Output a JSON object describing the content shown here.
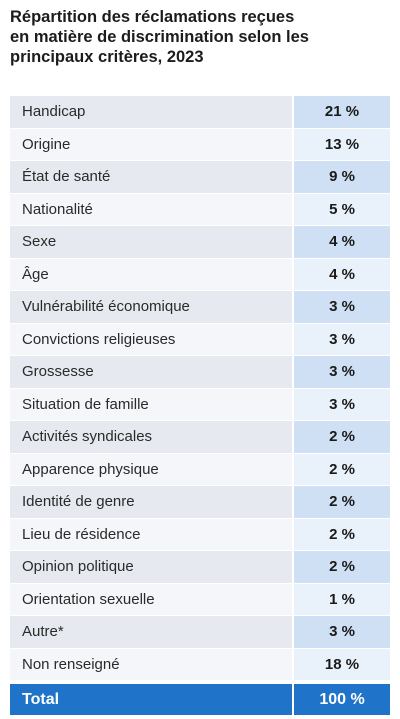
{
  "title": {
    "line1": "Répartition des réclamations reçues",
    "line2": "en matière de discrimination selon les",
    "line3": "principaux critères, 2023"
  },
  "chart_data": {
    "type": "table",
    "title": "Répartition des réclamations reçues en matière de discrimination selon les principaux critères, 2023",
    "categories": [
      "Handicap",
      "Origine",
      "État de santé",
      "Nationalité",
      "Sexe",
      "Âge",
      "Vulnérabilité économique",
      "Convictions religieuses",
      "Grossesse",
      "Situation de famille",
      "Activités syndicales",
      "Apparence physique",
      "Identité de genre",
      "Lieu de résidence",
      "Opinion politique",
      "Orientation sexuelle",
      "Autre*",
      "Non renseigné"
    ],
    "values": [
      21,
      13,
      9,
      5,
      4,
      4,
      3,
      3,
      3,
      3,
      2,
      2,
      2,
      2,
      2,
      1,
      3,
      18
    ],
    "value_labels": [
      "21 %",
      "13 %",
      "9 %",
      "5 %",
      "4 %",
      "4 %",
      "3 %",
      "3 %",
      "3 %",
      "3 %",
      "2 %",
      "2 %",
      "2 %",
      "2 %",
      "2 %",
      "1 %",
      "3 %",
      "18 %"
    ],
    "total": {
      "label": "Total",
      "value": 100,
      "value_label": "100 %"
    }
  },
  "colors": {
    "total_bg": "#1f73c8",
    "row_label_a": "#e6eaf0",
    "row_label_b": "#f4f6f9",
    "row_value_a": "#cfe0f4",
    "row_value_b": "#e9f1fb"
  }
}
